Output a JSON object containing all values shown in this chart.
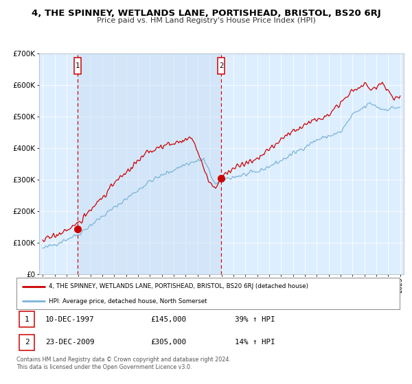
{
  "title": "4, THE SPINNEY, WETLANDS LANE, PORTISHEAD, BRISTOL, BS20 6RJ",
  "subtitle": "Price paid vs. HM Land Registry's House Price Index (HPI)",
  "background_color": "#ffffff",
  "plot_bg_color": "#ddeeff",
  "legend_line1": "4, THE SPINNEY, WETLANDS LANE, PORTISHEAD, BRISTOL, BS20 6RJ (detached house)",
  "legend_line2": "HPI: Average price, detached house, North Somerset",
  "sale1_date": "10-DEC-1997",
  "sale1_price": 145000,
  "sale1_hpi": "39% ↑ HPI",
  "sale2_date": "23-DEC-2009",
  "sale2_price": 305000,
  "sale2_hpi": "14% ↑ HPI",
  "footer": "Contains HM Land Registry data © Crown copyright and database right 2024.\nThis data is licensed under the Open Government Licence v3.0.",
  "hpi_color": "#7bb3d8",
  "price_color": "#cc0000",
  "marker_color": "#cc0000",
  "vline_color": "#cc0000",
  "shade_color": "#cce0f5",
  "ylim": [
    0,
    700000
  ],
  "yticks": [
    0,
    100000,
    200000,
    300000,
    400000,
    500000,
    600000,
    700000
  ],
  "ytick_labels": [
    "£0",
    "£100K",
    "£200K",
    "£300K",
    "£400K",
    "£500K",
    "£600K",
    "£700K"
  ],
  "xlim_start": 1994.7,
  "xlim_end": 2025.3,
  "sale1_x": 1997.94,
  "sale1_y": 145000,
  "sale2_x": 2009.98,
  "sale2_y": 305000,
  "marker_size": 7
}
